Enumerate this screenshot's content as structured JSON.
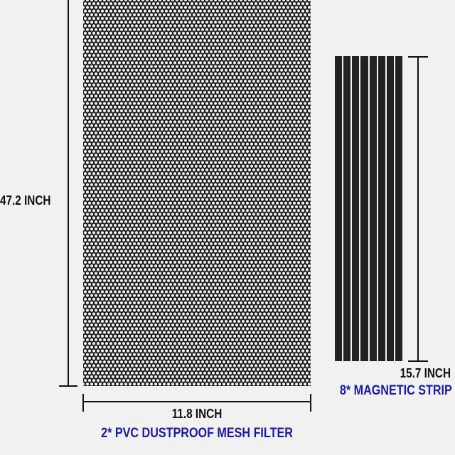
{
  "mesh_filter": {
    "height_label": "47.2 INCH",
    "width_label": "11.8 INCH",
    "title": "2* PVC DUSTPROOF MESH FILTER"
  },
  "magnetic_strip": {
    "length_label": "15.7 INCH",
    "title": "8* MAGNETIC STRIP",
    "count": 8
  },
  "colors": {
    "background": "#f1f1f1",
    "mesh": "#1c1c1c",
    "caption_blue": "#1a1aaa"
  }
}
